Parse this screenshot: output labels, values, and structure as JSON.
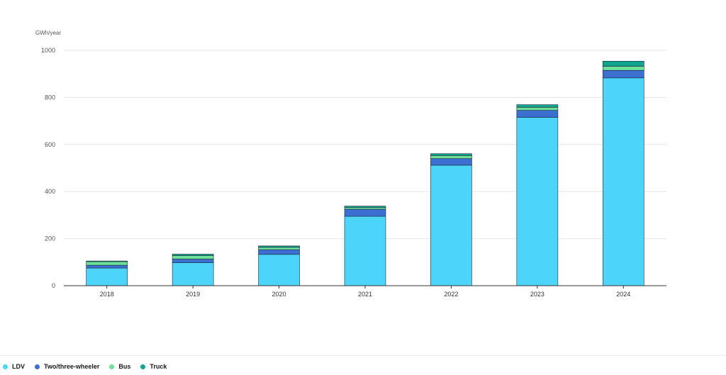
{
  "chart_data": {
    "type": "bar",
    "stacked": true,
    "ylabel": "GWh/year",
    "ylim": [
      0,
      1000
    ],
    "yticks": [
      0,
      200,
      400,
      600,
      800,
      1000
    ],
    "grid": true,
    "legend_position": "bottom-left",
    "categories": [
      "2018",
      "2019",
      "2020",
      "2021",
      "2022",
      "2023",
      "2024"
    ],
    "series": [
      {
        "name": "LDV",
        "color": "#4dd4fa",
        "values": [
          75,
          98,
          133,
          295,
          512,
          715,
          883
        ]
      },
      {
        "name": "Two/three-wheeler",
        "color": "#3c6fd1",
        "values": [
          12,
          15,
          20,
          30,
          28,
          30,
          32
        ]
      },
      {
        "name": "Bus",
        "color": "#6fe09a",
        "values": [
          15,
          15,
          10,
          7,
          13,
          13,
          17
        ]
      },
      {
        "name": "Truck",
        "color": "#12a38f",
        "values": [
          3,
          6,
          6,
          6,
          8,
          11,
          22
        ]
      }
    ]
  }
}
